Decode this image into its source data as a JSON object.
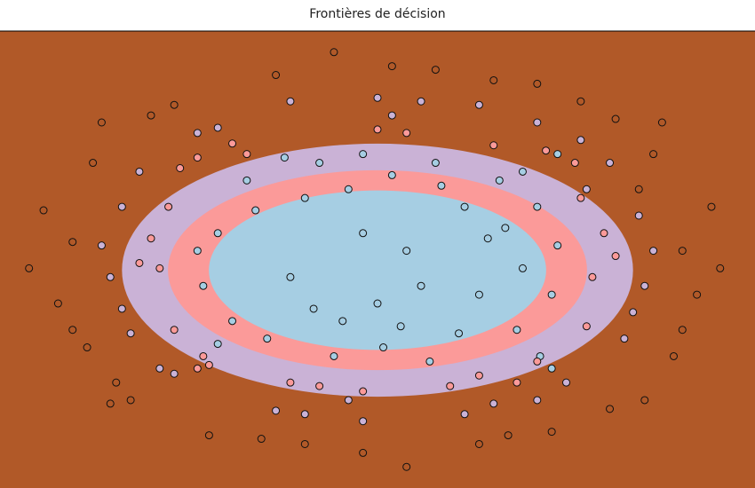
{
  "chart_data": {
    "type": "scatter",
    "title": "Frontières de décision",
    "xlabel": "",
    "ylabel": "",
    "axes_visible": false,
    "grid": false,
    "legend": "none",
    "background_regions": {
      "description_kind": "nested decision regions (outer to inner)",
      "classes": [
        {
          "class": 0,
          "color": "#b15928"
        },
        {
          "class": 1,
          "color": "#cab2d6"
        },
        {
          "class": 2,
          "color": "#fb9a99"
        },
        {
          "class": 3,
          "color": "#a6cee3"
        }
      ],
      "ellipse_radii": [
        {
          "class": 1,
          "rx": 1.0,
          "ry": 1.0
        },
        {
          "class": 2,
          "rx": 0.82,
          "ry": 0.79
        },
        {
          "class": 3,
          "rx": 0.66,
          "ry": 0.63
        }
      ]
    },
    "xlim": [
      -1.3,
      1.3
    ],
    "ylim": [
      -1.3,
      1.3
    ],
    "point_style": {
      "edge_color": "#111111",
      "class_colors": {
        "0": "#b15928",
        "1": "#cab2d6",
        "2": "#fb9a99",
        "3": "#a6cee3"
      }
    },
    "points": [
      [
        0.38,
        0.12,
        3
      ],
      [
        0.05,
        0.48,
        3
      ],
      [
        -0.42,
        0.28,
        3
      ],
      [
        -0.12,
        -0.35,
        3
      ],
      [
        0.28,
        -0.42,
        3
      ],
      [
        -0.3,
        -0.1,
        3
      ],
      [
        0.5,
        -0.05,
        3
      ],
      [
        -0.05,
        0.15,
        3
      ],
      [
        0.15,
        -0.15,
        3
      ],
      [
        -0.55,
        0.15,
        3
      ],
      [
        0.55,
        0.3,
        3
      ],
      [
        -0.2,
        0.55,
        3
      ],
      [
        0.2,
        0.55,
        3
      ],
      [
        0.48,
        -0.4,
        3
      ],
      [
        -0.5,
        -0.35,
        3
      ],
      [
        0.02,
        -0.5,
        3
      ],
      [
        -0.1,
        0.4,
        3
      ],
      [
        0.3,
        0.3,
        3
      ],
      [
        -0.38,
        -0.45,
        3
      ],
      [
        0.6,
        -0.2,
        3
      ],
      [
        -0.6,
        -0.15,
        3
      ],
      [
        0.1,
        0.05,
        3
      ],
      [
        -0.25,
        0.35,
        3
      ],
      [
        0.42,
        0.45,
        3
      ],
      [
        0.0,
        -0.25,
        3
      ],
      [
        0.62,
        0.08,
        3
      ],
      [
        -0.15,
        -0.55,
        3
      ],
      [
        0.35,
        -0.2,
        3
      ],
      [
        -0.45,
        0.45,
        3
      ],
      [
        0.22,
        0.42,
        3
      ],
      [
        -0.62,
        0.05,
        3
      ],
      [
        0.18,
        -0.58,
        3
      ],
      [
        -0.32,
        0.58,
        3
      ],
      [
        0.5,
        0.5,
        3
      ],
      [
        -0.55,
        -0.48,
        3
      ],
      [
        0.56,
        -0.55,
        3
      ],
      [
        -0.05,
        0.6,
        3
      ],
      [
        0.08,
        -0.38,
        3
      ],
      [
        -0.22,
        -0.28,
        3
      ],
      [
        0.44,
        0.18,
        3
      ],
      [
        0.7,
        0.35,
        2
      ],
      [
        -0.72,
        0.3,
        2
      ],
      [
        0.1,
        0.72,
        2
      ],
      [
        -0.2,
        -0.72,
        2
      ],
      [
        0.55,
        -0.58,
        2
      ],
      [
        -0.6,
        -0.55,
        2
      ],
      [
        0.74,
        -0.1,
        2
      ],
      [
        -0.75,
        -0.05,
        2
      ],
      [
        0.4,
        0.65,
        2
      ],
      [
        -0.45,
        0.6,
        2
      ],
      [
        0.25,
        -0.72,
        2
      ],
      [
        -0.05,
        -0.75,
        2
      ],
      [
        0.68,
        0.55,
        2
      ],
      [
        -0.68,
        0.52,
        2
      ],
      [
        0.72,
        -0.38,
        2
      ],
      [
        -0.7,
        -0.4,
        2
      ],
      [
        0.0,
        0.74,
        2
      ],
      [
        0.58,
        0.62,
        2
      ],
      [
        -0.3,
        -0.7,
        2
      ],
      [
        0.35,
        -0.66,
        2
      ],
      [
        -0.5,
        0.66,
        2
      ],
      [
        0.78,
        0.15,
        2
      ],
      [
        -0.78,
        0.12,
        2
      ],
      [
        0.48,
        -0.7,
        2
      ],
      [
        -0.62,
        -0.62,
        2
      ],
      [
        0.9,
        0.25,
        1
      ],
      [
        -0.88,
        0.3,
        1
      ],
      [
        0.15,
        0.9,
        1
      ],
      [
        -0.25,
        -0.88,
        1
      ],
      [
        0.65,
        -0.7,
        1
      ],
      [
        -0.7,
        -0.65,
        1
      ],
      [
        0.92,
        -0.15,
        1
      ],
      [
        -0.92,
        -0.1,
        1
      ],
      [
        0.55,
        0.78,
        1
      ],
      [
        -0.55,
        0.75,
        1
      ],
      [
        0.3,
        -0.88,
        1
      ],
      [
        -0.05,
        -0.92,
        1
      ],
      [
        0.8,
        0.55,
        1
      ],
      [
        -0.82,
        0.5,
        1
      ],
      [
        0.85,
        -0.45,
        1
      ],
      [
        -0.85,
        -0.42,
        1
      ],
      [
        0.0,
        0.92,
        1
      ],
      [
        0.7,
        0.68,
        1
      ],
      [
        -0.35,
        -0.86,
        1
      ],
      [
        0.4,
        -0.82,
        1
      ],
      [
        -0.62,
        0.72,
        1
      ],
      [
        0.95,
        0.05,
        1
      ],
      [
        -0.95,
        0.08,
        1
      ],
      [
        0.55,
        -0.8,
        1
      ],
      [
        -0.75,
        -0.62,
        1
      ],
      [
        0.35,
        0.88,
        1
      ],
      [
        -0.3,
        0.9,
        1
      ],
      [
        0.88,
        -0.3,
        1
      ],
      [
        -0.88,
        -0.28,
        1
      ],
      [
        0.72,
        0.4,
        1
      ],
      [
        1.05,
        0.05,
        0
      ],
      [
        -1.05,
        0.1,
        0
      ],
      [
        0.2,
        1.08,
        0
      ],
      [
        -0.25,
        -1.05,
        0
      ],
      [
        0.8,
        -0.85,
        0
      ],
      [
        -0.85,
        -0.8,
        0
      ],
      [
        1.1,
        -0.2,
        0
      ],
      [
        -1.1,
        -0.25,
        0
      ],
      [
        0.7,
        0.9,
        0
      ],
      [
        -0.7,
        0.88,
        0
      ],
      [
        0.35,
        -1.05,
        0
      ],
      [
        -0.05,
        -1.1,
        0
      ],
      [
        0.95,
        0.6,
        0
      ],
      [
        -0.98,
        0.55,
        0
      ],
      [
        1.02,
        -0.55,
        0
      ],
      [
        -1.0,
        -0.5,
        0
      ],
      [
        0.05,
        1.1,
        0
      ],
      [
        0.82,
        0.8,
        0
      ],
      [
        -0.4,
        -1.02,
        0
      ],
      [
        0.45,
        -1.0,
        0
      ],
      [
        -0.78,
        0.82,
        0
      ],
      [
        1.15,
        0.3,
        0
      ],
      [
        -1.15,
        0.28,
        0
      ],
      [
        0.6,
        -0.98,
        0
      ],
      [
        -0.9,
        -0.7,
        0
      ],
      [
        0.4,
        1.02,
        0
      ],
      [
        -0.35,
        1.05,
        0
      ],
      [
        1.05,
        -0.4,
        0
      ],
      [
        -1.05,
        -0.4,
        0
      ],
      [
        0.9,
        0.4,
        0
      ],
      [
        1.18,
        -0.05,
        0
      ],
      [
        -1.2,
        -0.05,
        0
      ],
      [
        0.1,
        -1.18,
        0
      ],
      [
        -0.15,
        1.18,
        0
      ],
      [
        0.98,
        0.78,
        0
      ],
      [
        -0.95,
        0.78,
        0
      ],
      [
        0.92,
        -0.8,
        0
      ],
      [
        -0.92,
        -0.82,
        0
      ],
      [
        0.55,
        1.0,
        0
      ],
      [
        -0.58,
        -1.0,
        0
      ],
      [
        0.82,
        0.02,
        2
      ],
      [
        -0.82,
        -0.02,
        2
      ],
      [
        0.05,
        0.82,
        1
      ],
      [
        -0.1,
        -0.8,
        1
      ],
      [
        0.62,
        0.6,
        3
      ],
      [
        -0.62,
        0.58,
        2
      ],
      [
        0.6,
        -0.62,
        3
      ],
      [
        -0.58,
        -0.6,
        2
      ]
    ]
  }
}
